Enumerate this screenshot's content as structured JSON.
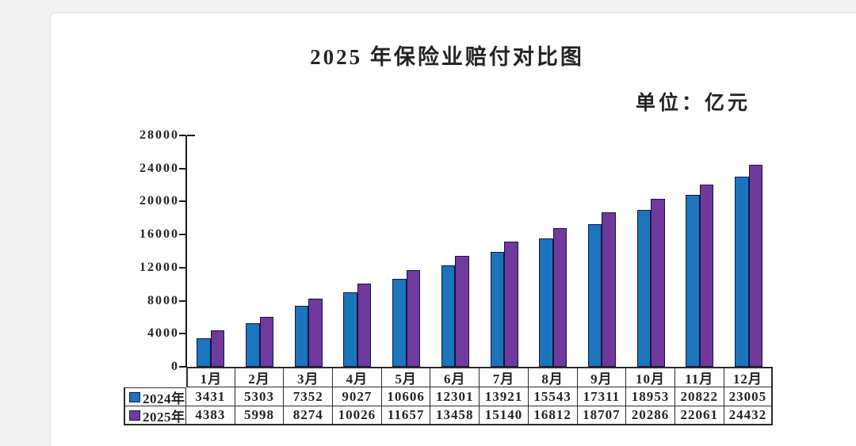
{
  "page": {
    "title": "2025 年保险业赔付对比图",
    "unit_label": "单位：亿元"
  },
  "chart_data": {
    "type": "bar",
    "title": "2025 年保险业赔付对比图",
    "unit_label": "单位：亿元",
    "categories": [
      "1月",
      "2月",
      "3月",
      "4月",
      "5月",
      "6月",
      "7月",
      "8月",
      "9月",
      "10月",
      "11月",
      "12月"
    ],
    "series": [
      {
        "name": "2024年",
        "color": "#1b75bc",
        "values": [
          3431,
          5303,
          7352,
          9027,
          10606,
          12301,
          13921,
          15543,
          17311,
          18953,
          20822,
          23005
        ]
      },
      {
        "name": "2025年",
        "color": "#703a9d",
        "values": [
          4383,
          5998,
          8274,
          10026,
          11657,
          13458,
          15140,
          16812,
          18707,
          20286,
          22061,
          24432
        ]
      }
    ],
    "ylim": [
      0,
      28000
    ],
    "ytick_step": 4000,
    "ytick_labels": [
      "0",
      "4000",
      "8000",
      "12000",
      "16000",
      "20000",
      "24000",
      "28000"
    ],
    "legend_position": "table-left",
    "grid": false,
    "colors": {
      "bar_2024": "#1b75bc",
      "bar_2025": "#703a9d",
      "bar_border": "#171345",
      "axis": "#1c1c1c",
      "table_border": "#2b2b2b",
      "text": "#242424"
    }
  }
}
